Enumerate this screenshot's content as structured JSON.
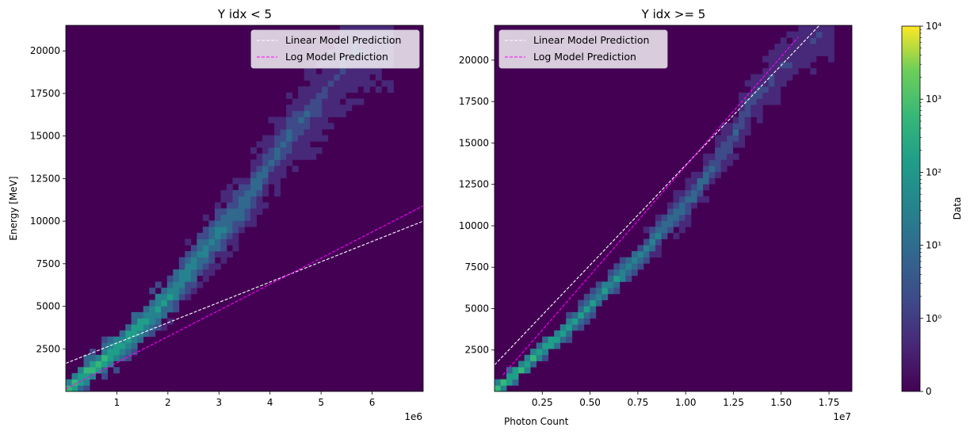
{
  "chart_data": [
    {
      "type": "heatmap",
      "title": "Y idx < 5",
      "xlabel": "",
      "ylabel": "Energy [MeV]",
      "x_offset_label": "1e6",
      "xlim": [
        0,
        7000000
      ],
      "ylim": [
        0,
        21500
      ],
      "xticks": [
        1000000,
        2000000,
        3000000,
        4000000,
        5000000,
        6000000
      ],
      "xtick_labels": [
        "1",
        "2",
        "3",
        "4",
        "5",
        "6"
      ],
      "yticks": [
        2500,
        5000,
        7500,
        10000,
        12500,
        15000,
        17500,
        20000
      ],
      "ytick_labels": [
        "2500",
        "5000",
        "7500",
        "10000",
        "12500",
        "15000",
        "17500",
        "20000"
      ],
      "legend_position": "upper right",
      "density_ridge": [
        [
          0,
          0
        ],
        [
          500000,
          1300
        ],
        [
          1000000,
          2500
        ],
        [
          1500000,
          4000
        ],
        [
          2000000,
          5500
        ],
        [
          2500000,
          7500
        ],
        [
          3000000,
          9300
        ],
        [
          3500000,
          11000
        ],
        [
          4000000,
          13500
        ],
        [
          4500000,
          15500
        ],
        [
          5000000,
          17000
        ],
        [
          5500000,
          19500
        ],
        [
          6300000,
          21000
        ]
      ],
      "series": [
        {
          "name": "Linear Model Prediction",
          "color": "#ffffff",
          "style": "dashed",
          "x": [
            0,
            7000000
          ],
          "y": [
            1650,
            10000
          ]
        },
        {
          "name": "Log Model Prediction",
          "color": "#ff00ff",
          "style": "dashed",
          "x": [
            0,
            7000000
          ],
          "y": [
            150,
            10900
          ]
        }
      ]
    },
    {
      "type": "heatmap",
      "title": "Y idx >= 5",
      "xlabel": "Photon Count",
      "ylabel": "",
      "x_offset_label": "1e7",
      "xlim": [
        0,
        18700000
      ],
      "ylim": [
        0,
        22100
      ],
      "xticks": [
        2500000,
        5000000,
        7500000,
        10000000,
        12500000,
        15000000,
        17500000
      ],
      "xtick_labels": [
        "0.25",
        "0.50",
        "0.75",
        "1.00",
        "1.25",
        "1.50",
        "1.75"
      ],
      "yticks": [
        2500,
        5000,
        7500,
        10000,
        12500,
        15000,
        17500,
        20000
      ],
      "ytick_labels": [
        "2500",
        "5000",
        "7500",
        "10000",
        "12500",
        "15000",
        "17500",
        "20000"
      ],
      "legend_position": "upper left",
      "density_ridge": [
        [
          0,
          0
        ],
        [
          1000000,
          1000
        ],
        [
          2500000,
          2500
        ],
        [
          4000000,
          4000
        ],
        [
          5000000,
          5200
        ],
        [
          6000000,
          6400
        ],
        [
          7500000,
          8000
        ],
        [
          9000000,
          10000
        ],
        [
          10500000,
          12000
        ],
        [
          12000000,
          14500
        ],
        [
          13500000,
          17500
        ],
        [
          15500000,
          20000
        ],
        [
          17500000,
          22000
        ]
      ],
      "series": [
        {
          "name": "Linear Model Prediction",
          "color": "#ffffff",
          "style": "dashed",
          "x": [
            0,
            17000000
          ],
          "y": [
            1600,
            22100
          ]
        },
        {
          "name": "Log Model Prediction",
          "color": "#ff00ff",
          "style": "dashed",
          "x": [
            450000,
            15900000
          ],
          "y": [
            1000,
            21400
          ]
        }
      ]
    }
  ],
  "colorbar": {
    "label": "Data",
    "scale": "symlog",
    "range": [
      0,
      10000
    ],
    "colormap": "viridis",
    "tick_labels": [
      "0",
      "10⁰",
      "10¹",
      "10²",
      "10³",
      "10⁴"
    ]
  }
}
